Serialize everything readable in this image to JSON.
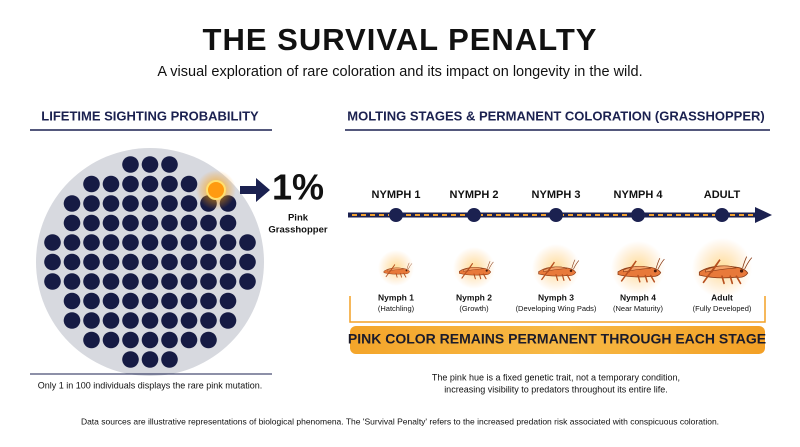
{
  "header": {
    "title": "THE SURVIVAL PENALTY",
    "subtitle": "A visual exploration of rare coloration and its impact on longevity in the wild."
  },
  "left_panel": {
    "heading": "LIFETIME SIGHTING PROBABILITY",
    "stat": "1%",
    "stat_label": [
      "Pink",
      "Grasshopper"
    ],
    "caption": "Only 1 in 100 individuals displays the rare pink mutation."
  },
  "right_panel": {
    "heading": "MOLTING STAGES & PERMANENT COLORATION (GRASSHOPPER)",
    "stages": [
      {
        "label": "NYMPH 1",
        "name": "Nymph 1",
        "detail": "(Hatchling)"
      },
      {
        "label": "NYMPH 2",
        "name": "Nymph 2",
        "detail": "(Growth)"
      },
      {
        "label": "NYMPH 3",
        "name": "Nymph 3",
        "detail": "(Developing Wing Pads)"
      },
      {
        "label": "NYMPH 4",
        "name": "Nymph 4",
        "detail": "(Near Maturity)"
      },
      {
        "label": "ADULT",
        "name": "Adult",
        "detail": "(Fully Developed)"
      }
    ],
    "banner": "PINK COLOR REMAINS PERMANENT THROUGH EACH STAGE",
    "caption": [
      "The pink hue is a fixed genetic trait, not a temporary condition,",
      "increasing visibility to predators throughout its entire life."
    ]
  },
  "footer": "Data sources are illustrative representations of biological phenomena. The 'Survival Penalty' refers to the increased predation risk associated with conspicuous coloration."
}
